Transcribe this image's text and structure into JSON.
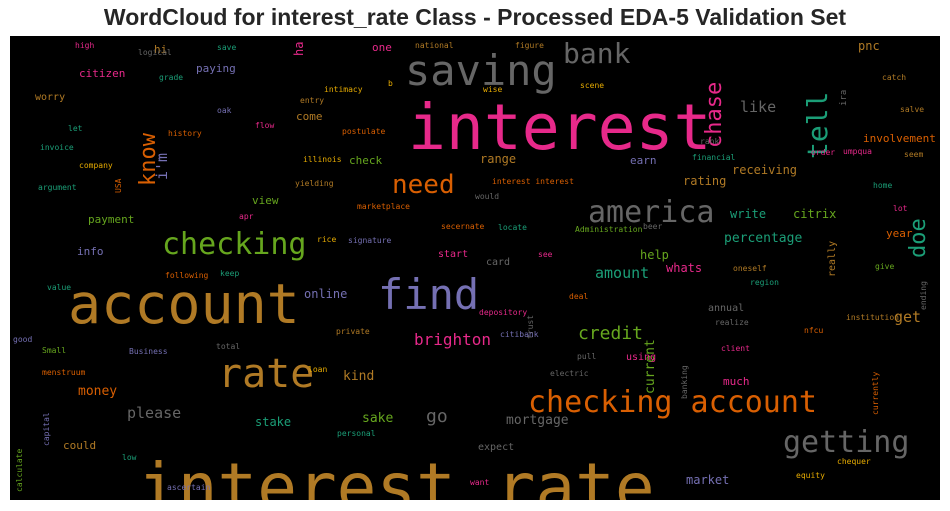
{
  "title": "WordCloud for interest_rate Class - Processed EDA-5 Validation Set",
  "chart_data": {
    "type": "wordcloud",
    "title": "WordCloud for interest_rate Class - Processed EDA-5 Validation Set",
    "background": "#000000",
    "words": [
      {
        "text": "interest rate",
        "weight": 1.0,
        "color": "#b07a25"
      },
      {
        "text": "interest",
        "weight": 0.88,
        "color": "#e7298a"
      },
      {
        "text": "account",
        "weight": 0.8,
        "color": "#b07a25"
      },
      {
        "text": "find",
        "weight": 0.6,
        "color": "#7570b3"
      },
      {
        "text": "saving",
        "weight": 0.6,
        "color": "#666666"
      },
      {
        "text": "rate",
        "weight": 0.55,
        "color": "#b07a25"
      },
      {
        "text": "checking account",
        "weight": 0.48,
        "color": "#d95f02"
      },
      {
        "text": "checking",
        "weight": 0.48,
        "color": "#66a61e"
      },
      {
        "text": "america",
        "weight": 0.48,
        "color": "#666666"
      },
      {
        "text": "getting",
        "weight": 0.48,
        "color": "#666666"
      },
      {
        "text": "bank",
        "weight": 0.46,
        "color": "#666666"
      },
      {
        "text": "tell",
        "weight": 0.44,
        "color": "#1b9e77"
      },
      {
        "text": "need",
        "weight": 0.38,
        "color": "#d95f02"
      },
      {
        "text": "chase",
        "weight": 0.34,
        "color": "#e7298a"
      },
      {
        "text": "know",
        "weight": 0.34,
        "color": "#d95f02"
      },
      {
        "text": "doe",
        "weight": 0.34,
        "color": "#1b9e77"
      },
      {
        "text": "credit",
        "weight": 0.28,
        "color": "#66a61e"
      },
      {
        "text": "go",
        "weight": 0.28,
        "color": "#666666"
      },
      {
        "text": "brighton",
        "weight": 0.24,
        "color": "#e7298a"
      },
      {
        "text": "amount",
        "weight": 0.24,
        "color": "#1b9e77"
      },
      {
        "text": "like",
        "weight": 0.24,
        "color": "#666666"
      },
      {
        "text": "i'm",
        "weight": 0.24,
        "color": "#7570b3"
      },
      {
        "text": "get",
        "weight": 0.24,
        "color": "#b07a25"
      },
      {
        "text": "please",
        "weight": 0.22,
        "color": "#666666"
      },
      {
        "text": "mortgage",
        "weight": 0.2,
        "color": "#666666"
      },
      {
        "text": "percentage",
        "weight": 0.2,
        "color": "#1b9e77"
      },
      {
        "text": "money",
        "weight": 0.2,
        "color": "#d95f02"
      },
      {
        "text": "kind",
        "weight": 0.2,
        "color": "#b07a25"
      },
      {
        "text": "current",
        "weight": 0.2,
        "color": "#66a61e"
      },
      {
        "text": "sake",
        "weight": 0.2,
        "color": "#66a61e"
      },
      {
        "text": "ha",
        "weight": 0.18,
        "color": "#e7298a"
      },
      {
        "text": "online",
        "weight": 0.18,
        "color": "#7570b3"
      },
      {
        "text": "range",
        "weight": 0.18,
        "color": "#b07a25"
      },
      {
        "text": "rating",
        "weight": 0.18,
        "color": "#b07a25"
      },
      {
        "text": "receiving",
        "weight": 0.18,
        "color": "#b07a25"
      },
      {
        "text": "write",
        "weight": 0.18,
        "color": "#1b9e77"
      },
      {
        "text": "citrix",
        "weight": 0.18,
        "color": "#66a61e"
      },
      {
        "text": "help",
        "weight": 0.18,
        "color": "#66a61e"
      },
      {
        "text": "whats",
        "weight": 0.18,
        "color": "#e7298a"
      },
      {
        "text": "stake",
        "weight": 0.18,
        "color": "#1b9e77"
      },
      {
        "text": "market",
        "weight": 0.18,
        "color": "#7570b3"
      },
      {
        "text": "pnc",
        "weight": 0.18,
        "color": "#b07a25"
      },
      {
        "text": "payment",
        "weight": 0.16,
        "color": "#66a61e"
      },
      {
        "text": "view",
        "weight": 0.16,
        "color": "#66a61e"
      },
      {
        "text": "citizen",
        "weight": 0.16,
        "color": "#e7298a"
      },
      {
        "text": "paying",
        "weight": 0.16,
        "color": "#7570b3"
      },
      {
        "text": "one",
        "weight": 0.16,
        "color": "#e7298a"
      },
      {
        "text": "hi",
        "weight": 0.16,
        "color": "#b07a25"
      },
      {
        "text": "come",
        "weight": 0.16,
        "color": "#b07a25"
      },
      {
        "text": "check",
        "weight": 0.16,
        "color": "#66a61e"
      },
      {
        "text": "earn",
        "weight": 0.16,
        "color": "#7570b3"
      },
      {
        "text": "involvement",
        "weight": 0.16,
        "color": "#d95f02"
      },
      {
        "text": "year",
        "weight": 0.16,
        "color": "#d95f02"
      },
      {
        "text": "much",
        "weight": 0.16,
        "color": "#e7298a"
      },
      {
        "text": "could",
        "weight": 0.16,
        "color": "#b07a25"
      },
      {
        "text": "info",
        "weight": 0.16,
        "color": "#7570b3"
      },
      {
        "text": "worry",
        "weight": 0.14,
        "color": "#b07a25"
      },
      {
        "text": "card",
        "weight": 0.14,
        "color": "#666666"
      },
      {
        "text": "start",
        "weight": 0.14,
        "color": "#e7298a"
      },
      {
        "text": "annual",
        "weight": 0.14,
        "color": "#666666"
      },
      {
        "text": "using",
        "weight": 0.14,
        "color": "#e7298a"
      },
      {
        "text": "expect",
        "weight": 0.14,
        "color": "#666666"
      },
      {
        "text": "really",
        "weight": 0.14,
        "color": "#b07a25"
      },
      {
        "text": "ira",
        "weight": 0.12,
        "color": "#666666"
      },
      {
        "text": "high",
        "weight": 0.1,
        "color": "#e7298a"
      },
      {
        "text": "logical",
        "weight": 0.1,
        "color": "#666666"
      },
      {
        "text": "save",
        "weight": 0.1,
        "color": "#1b9e77"
      },
      {
        "text": "national",
        "weight": 0.1,
        "color": "#b07a25"
      },
      {
        "text": "figure",
        "weight": 0.1,
        "color": "#b07a25"
      },
      {
        "text": "grade",
        "weight": 0.1,
        "color": "#1b9e77"
      },
      {
        "text": "intimacy",
        "weight": 0.1,
        "color": "#e6ab02"
      },
      {
        "text": "b",
        "weight": 0.1,
        "color": "#e6ab02"
      },
      {
        "text": "wise",
        "weight": 0.1,
        "color": "#e6ab02"
      },
      {
        "text": "scene",
        "weight": 0.1,
        "color": "#e6ab02"
      },
      {
        "text": "catch",
        "weight": 0.1,
        "color": "#b07a25"
      },
      {
        "text": "oak",
        "weight": 0.1,
        "color": "#7570b3"
      },
      {
        "text": "entry",
        "weight": 0.1,
        "color": "#b07a25"
      },
      {
        "text": "salve",
        "weight": 0.1,
        "color": "#b07a25"
      },
      {
        "text": "let",
        "weight": 0.1,
        "color": "#1b9e77"
      },
      {
        "text": "flow",
        "weight": 0.1,
        "color": "#e7298a"
      },
      {
        "text": "postulate",
        "weight": 0.1,
        "color": "#d95f02"
      },
      {
        "text": "rank",
        "weight": 0.1,
        "color": "#666666"
      },
      {
        "text": "history",
        "weight": 0.1,
        "color": "#d95f02"
      },
      {
        "text": "invoice",
        "weight": 0.1,
        "color": "#1b9e77"
      },
      {
        "text": "order",
        "weight": 0.1,
        "color": "#e7298a"
      },
      {
        "text": "umpqua",
        "weight": 0.1,
        "color": "#e7298a"
      },
      {
        "text": "seem",
        "weight": 0.1,
        "color": "#b07a25"
      },
      {
        "text": "company",
        "weight": 0.1,
        "color": "#e6ab02"
      },
      {
        "text": "illinois",
        "weight": 0.1,
        "color": "#e6ab02"
      },
      {
        "text": "financial",
        "weight": 0.1,
        "color": "#1b9e77"
      },
      {
        "text": "argument",
        "weight": 0.1,
        "color": "#1b9e77"
      },
      {
        "text": "USA",
        "weight": 0.1,
        "color": "#d95f02"
      },
      {
        "text": "yielding",
        "weight": 0.1,
        "color": "#b07a25"
      },
      {
        "text": "interest interest",
        "weight": 0.1,
        "color": "#d95f02"
      },
      {
        "text": "home",
        "weight": 0.1,
        "color": "#1b9e77"
      },
      {
        "text": "would",
        "weight": 0.1,
        "color": "#666666"
      },
      {
        "text": "marketplace",
        "weight": 0.1,
        "color": "#d95f02"
      },
      {
        "text": "apr",
        "weight": 0.1,
        "color": "#e7298a"
      },
      {
        "text": "beer",
        "weight": 0.1,
        "color": "#666666"
      },
      {
        "text": "lot",
        "weight": 0.1,
        "color": "#e7298a"
      },
      {
        "text": "secernate",
        "weight": 0.1,
        "color": "#d95f02"
      },
      {
        "text": "locate",
        "weight": 0.1,
        "color": "#1b9e77"
      },
      {
        "text": "Administration",
        "weight": 0.1,
        "color": "#66a61e"
      },
      {
        "text": "rice",
        "weight": 0.1,
        "color": "#e6ab02"
      },
      {
        "text": "signature",
        "weight": 0.1,
        "color": "#7570b3"
      },
      {
        "text": "following",
        "weight": 0.1,
        "color": "#d95f02"
      },
      {
        "text": "keep",
        "weight": 0.1,
        "color": "#1b9e77"
      },
      {
        "text": "see",
        "weight": 0.1,
        "color": "#e7298a"
      },
      {
        "text": "oneself",
        "weight": 0.1,
        "color": "#b07a25"
      },
      {
        "text": "give",
        "weight": 0.1,
        "color": "#66a61e"
      },
      {
        "text": "region",
        "weight": 0.1,
        "color": "#1b9e77"
      },
      {
        "text": "value",
        "weight": 0.1,
        "color": "#1b9e77"
      },
      {
        "text": "ending",
        "weight": 0.1,
        "color": "#666666"
      },
      {
        "text": "deal",
        "weight": 0.1,
        "color": "#d95f02"
      },
      {
        "text": "depository",
        "weight": 0.1,
        "color": "#e7298a"
      },
      {
        "text": "trust",
        "weight": 0.1,
        "color": "#666666"
      },
      {
        "text": "institution",
        "weight": 0.1,
        "color": "#b07a25"
      },
      {
        "text": "realize",
        "weight": 0.1,
        "color": "#666666"
      },
      {
        "text": "nfcu",
        "weight": 0.1,
        "color": "#d95f02"
      },
      {
        "text": "private",
        "weight": 0.1,
        "color": "#b07a25"
      },
      {
        "text": "citibank",
        "weight": 0.1,
        "color": "#7570b3"
      },
      {
        "text": "good",
        "weight": 0.1,
        "color": "#7570b3"
      },
      {
        "text": "total",
        "weight": 0.1,
        "color": "#666666"
      },
      {
        "text": "client",
        "weight": 0.1,
        "color": "#e7298a"
      },
      {
        "text": "Small",
        "weight": 0.1,
        "color": "#66a61e"
      },
      {
        "text": "Business",
        "weight": 0.1,
        "color": "#7570b3"
      },
      {
        "text": "pull",
        "weight": 0.1,
        "color": "#666666"
      },
      {
        "text": "banking",
        "weight": 0.1,
        "color": "#666666"
      },
      {
        "text": "menstruum",
        "weight": 0.1,
        "color": "#d95f02"
      },
      {
        "text": "loan",
        "weight": 0.1,
        "color": "#e6ab02"
      },
      {
        "text": "electric",
        "weight": 0.1,
        "color": "#666666"
      },
      {
        "text": "currently",
        "weight": 0.1,
        "color": "#d95f02"
      },
      {
        "text": "capital",
        "weight": 0.1,
        "color": "#7570b3"
      },
      {
        "text": "personal",
        "weight": 0.1,
        "color": "#1b9e77"
      },
      {
        "text": "calculate",
        "weight": 0.1,
        "color": "#66a61e"
      },
      {
        "text": "low",
        "weight": 0.1,
        "color": "#1b9e77"
      },
      {
        "text": "equity",
        "weight": 0.1,
        "color": "#e6ab02"
      },
      {
        "text": "chequer",
        "weight": 0.1,
        "color": "#e6ab02"
      },
      {
        "text": "ascertain",
        "weight": 0.1,
        "color": "#7570b3"
      },
      {
        "text": "want",
        "weight": 0.1,
        "color": "#e7298a"
      }
    ]
  }
}
